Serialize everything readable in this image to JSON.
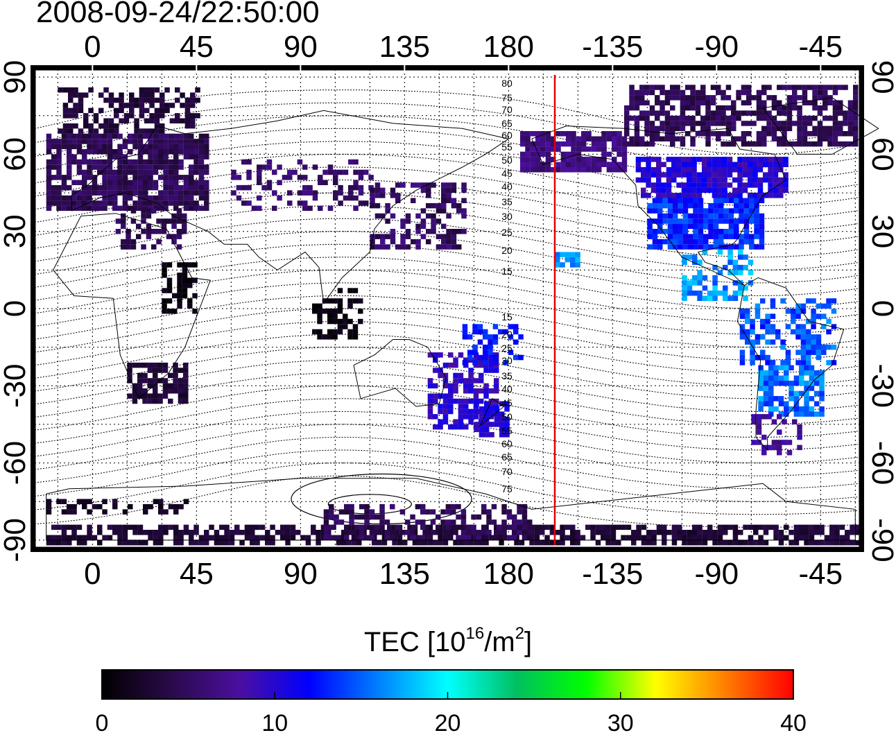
{
  "header": {
    "timestamp": "2008-09-24/22:50:00"
  },
  "map": {
    "lon_ticks": [
      {
        "lon": 0,
        "label": "0"
      },
      {
        "lon": 45,
        "label": "45"
      },
      {
        "lon": 90,
        "label": "90"
      },
      {
        "lon": 135,
        "label": "135"
      },
      {
        "lon": 180,
        "label": "180"
      },
      {
        "lon": 225,
        "label": "-135"
      },
      {
        "lon": 270,
        "label": "-90"
      },
      {
        "lon": 315,
        "label": "-45"
      }
    ],
    "lat_ticks": [
      {
        "lat": 90,
        "label": "90"
      },
      {
        "lat": 60,
        "label": "60"
      },
      {
        "lat": 30,
        "label": "30"
      },
      {
        "lat": 0,
        "label": "0"
      },
      {
        "lat": -30,
        "label": "-30"
      },
      {
        "lat": -60,
        "label": "-60"
      },
      {
        "lat": -90,
        "label": "-90"
      }
    ],
    "lon_range": [
      -25,
      332
    ],
    "lat_range": [
      -93,
      93
    ],
    "terminator_lon": 200,
    "terminator_color": "#e00000",
    "mlat_labels": [
      "80",
      "75",
      "70",
      "65",
      "60",
      "55",
      "50",
      "45",
      "40",
      "35",
      "30",
      "25",
      "20",
      "15",
      "15",
      "20",
      "25",
      "30",
      "35",
      "40",
      "45",
      "50",
      "55",
      "60",
      "65",
      "70",
      "75"
    ]
  },
  "colorbar": {
    "title_prefix": "TEC  [10",
    "title_sup1": "16",
    "title_mid": "/m",
    "title_sup2": "2",
    "title_suffix": "]",
    "tick_labels": [
      "0",
      "10",
      "20",
      "30",
      "40"
    ],
    "range": [
      0,
      40
    ],
    "stops": [
      "#000000",
      "#2a0a4a",
      "#4b0fa0",
      "#0000ff",
      "#0080ff",
      "#00ffff",
      "#00c060",
      "#00ff00",
      "#ffff00",
      "#ff8000",
      "#ff0000"
    ]
  }
}
